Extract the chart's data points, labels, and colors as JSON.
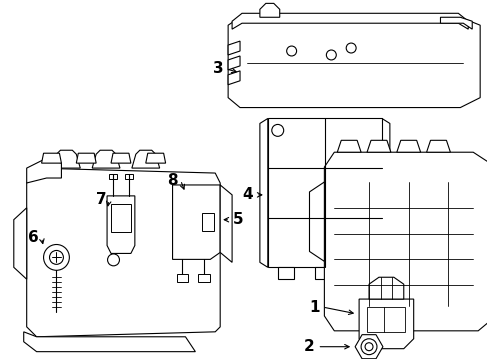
{
  "bg_color": "#ffffff",
  "line_color": "#000000",
  "figsize": [
    4.89,
    3.6
  ],
  "dpi": 100,
  "label_fontsize": 11
}
